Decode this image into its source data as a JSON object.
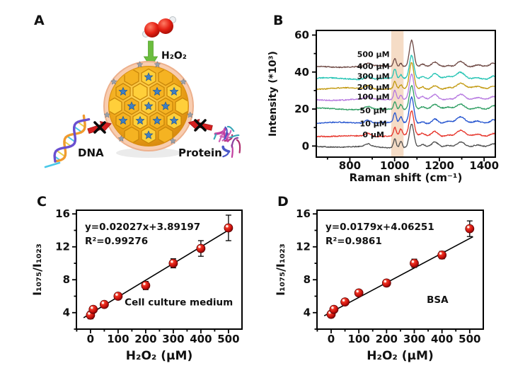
{
  "panels": {
    "a": {
      "label": "A",
      "h2o2_label": "H₂O₂",
      "dna_label": "DNA",
      "protein_label": "Protein"
    },
    "b": {
      "label": "B"
    },
    "c": {
      "label": "C"
    },
    "d": {
      "label": "D"
    }
  },
  "colors": {
    "accent_red": "#d42020",
    "arrow_green": "#6bbd3e",
    "particle_gold": "#f0a818",
    "star_blue": "#3f80c4",
    "rim_peach": "#f8cdb0",
    "marker_red": "#cf1410"
  },
  "chart_data": [
    {
      "id": "B",
      "type": "line",
      "title": "",
      "xlabel": "Raman shift (cm⁻¹)",
      "ylabel": "Intensity (*10³)",
      "xlim": [
        650,
        1450
      ],
      "ylim": [
        -6,
        62.5
      ],
      "xticks": [
        800,
        1000,
        1200,
        1400
      ],
      "yticks": [
        0,
        20,
        40,
        60
      ],
      "x_minor_step": 100,
      "y_minor_step": 10,
      "grid": false,
      "legend_position": "inline-labels",
      "highlight_band": {
        "x": [
          985,
          1040
        ],
        "color": "#f5dcc6"
      },
      "series": [
        {
          "name": "0 μM",
          "color": "#4f4f4f",
          "offset": -0.5
        },
        {
          "name": "10 μM",
          "color": "#e63228",
          "offset": 5.5
        },
        {
          "name": "50 μM",
          "color": "#2353cf",
          "offset": 12.5
        },
        {
          "name": "100 μM",
          "color": "#2f9e63",
          "offset": 20.0
        },
        {
          "name": "200 μM",
          "color": "#b678e0",
          "offset": 25.2
        },
        {
          "name": "300 μM",
          "color": "#c2990f",
          "offset": 31.0
        },
        {
          "name": "400 μM",
          "color": "#25c4b4",
          "offset": 36.5
        },
        {
          "name": "500 μM",
          "color": "#6f4a45",
          "offset": 43.0
        }
      ],
      "peaks": [
        {
          "center": 880,
          "width": 13,
          "amp": 1.6
        },
        {
          "center": 1001,
          "width": 6,
          "amp": 4.4
        },
        {
          "center": 1028,
          "width": 6,
          "amp": 3.5
        },
        {
          "center": 1076,
          "width": 10,
          "amp": 12.8
        },
        {
          "center": 1125,
          "width": 9,
          "amp": 1.1
        },
        {
          "center": 1180,
          "width": 13,
          "amp": 2.3
        },
        {
          "center": 1240,
          "width": 12,
          "amp": 0.7
        },
        {
          "center": 1295,
          "width": 18,
          "amp": 2.9
        },
        {
          "center": 1370,
          "width": 15,
          "amp": 0.9
        },
        {
          "center": 1442,
          "width": 13,
          "amp": 1.6
        }
      ],
      "series_label_x": 905
    },
    {
      "id": "C",
      "type": "scatter",
      "xlabel": "H₂O₂ (μM)",
      "ylabel": "I₁₀₇₅/I₁₀₂₃",
      "equation": "y=0.02027x+3.89197",
      "r_squared": "R²=0.99276",
      "sample_label": "Cell culture medium",
      "sample_label_pos": [
        320,
        4.9
      ],
      "x": [
        0,
        10,
        50,
        100,
        200,
        300,
        400,
        500
      ],
      "y": [
        3.7,
        4.4,
        5.0,
        6.0,
        7.3,
        10.0,
        11.8,
        14.3
      ],
      "yerr": [
        0.45,
        0.35,
        0.3,
        0.3,
        0.5,
        0.55,
        0.95,
        1.55
      ],
      "fit": {
        "slope": 0.02027,
        "intercept": 3.89197,
        "x_range": [
          -25,
          512
        ]
      },
      "xlim": [
        -51,
        549
      ],
      "ylim": [
        2,
        16.45
      ],
      "xticks": [
        0,
        100,
        200,
        300,
        400,
        500
      ],
      "yticks": [
        4,
        8,
        12,
        16
      ],
      "x_minor_step": 50,
      "y_minor_step": 2,
      "grid": false,
      "marker_color": "#cf1410"
    },
    {
      "id": "D",
      "type": "scatter",
      "xlabel": "H₂O₂ (μM)",
      "ylabel": "I₁₀₇₅/I₁₀₂₃",
      "equation": "y=0.0179x+4.06251",
      "r_squared": "R²=0.9861",
      "sample_label": "BSA",
      "sample_label_pos": [
        384,
        5.2
      ],
      "x": [
        0,
        10,
        50,
        100,
        200,
        300,
        400,
        500
      ],
      "y": [
        3.8,
        4.4,
        5.3,
        6.4,
        7.6,
        10.0,
        11.0,
        14.2
      ],
      "yerr": [
        0.4,
        0.35,
        0.3,
        0.35,
        0.4,
        0.5,
        0.45,
        0.95
      ],
      "fit": {
        "slope": 0.0179,
        "intercept": 4.06251,
        "x_range": [
          -25,
          512
        ]
      },
      "xlim": [
        -51,
        549
      ],
      "ylim": [
        2,
        16.45
      ],
      "xticks": [
        0,
        100,
        200,
        300,
        400,
        500
      ],
      "yticks": [
        4,
        8,
        12,
        16
      ],
      "x_minor_step": 50,
      "y_minor_step": 2,
      "grid": false,
      "marker_color": "#cf1410"
    }
  ]
}
